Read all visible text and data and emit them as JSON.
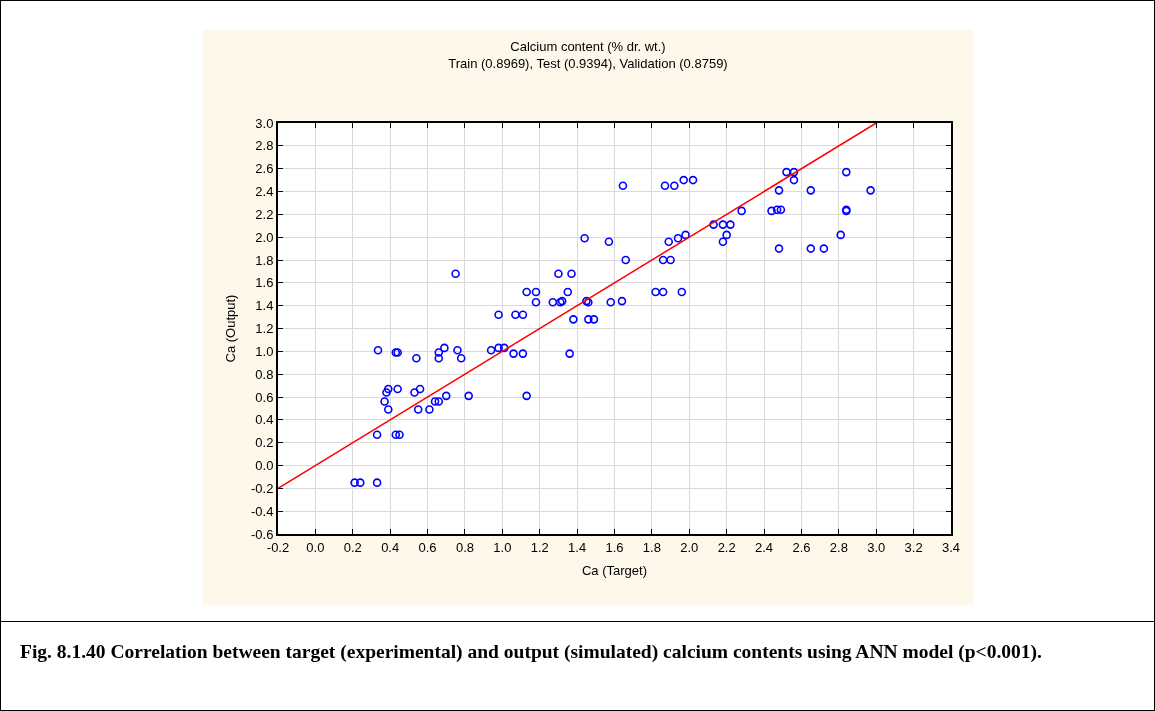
{
  "chart_data": {
    "type": "scatter",
    "title": "Calcium content (% dr. wt.)",
    "subtitle": "Train (0.8969), Test (0.9394), Validation (0.8759)",
    "xlabel": "Ca (Target)",
    "ylabel": "Ca (Output)",
    "annotations": [
      "Fig. 8.1.40 Correlation between target (experimental) and output (simulated) calcium contents using ANN model (p<0.001)."
    ],
    "xlim": [
      -0.2,
      3.4
    ],
    "xticks": [
      -0.2,
      {
        "value": 0,
        "label": "0.0"
      },
      0.2,
      0.4,
      0.6,
      0.8,
      {
        "value": 1,
        "label": "1.0"
      },
      1.2,
      1.4,
      1.6,
      1.8,
      {
        "value": 2,
        "label": "2.0"
      },
      2.2,
      2.4,
      2.6,
      2.8,
      {
        "value": 3,
        "label": "3.0"
      },
      3.2,
      3.4
    ],
    "ylim": [
      -0.6,
      3.0
    ],
    "yticks": [
      -0.6,
      -0.4,
      -0.2,
      {
        "value": 0,
        "label": "0.0"
      },
      0.2,
      0.4,
      0.6,
      0.8,
      {
        "value": 1,
        "label": "1.0"
      },
      1.2,
      1.4,
      1.6,
      1.8,
      {
        "value": 2,
        "label": "2.0"
      },
      2.2,
      2.4,
      2.6,
      2.8,
      {
        "value": 3,
        "label": "3.0"
      }
    ],
    "grid": true,
    "legend": false,
    "marker": "circle",
    "series": [
      {
        "color": "#0000ff",
        "x": [
          0.21,
          0.24,
          0.33,
          0.33,
          0.43,
          0.45,
          0.335,
          0.43,
          0.44,
          0.37,
          0.38,
          0.39,
          0.39,
          0.44,
          0.53,
          0.54,
          0.55,
          0.56,
          0.61,
          0.64,
          0.66,
          0.66,
          0.66,
          0.69,
          0.7,
          0.75,
          0.76,
          0.78,
          0.82,
          0.94,
          0.98,
          1.01,
          0.98,
          1.06,
          1.11,
          1.07,
          1.11,
          1.13,
          1.13,
          1.18,
          1.18,
          1.27,
          1.3,
          1.31,
          1.32,
          1.35,
          1.37,
          1.38,
          1.36,
          1.44,
          1.45,
          1.46,
          1.46,
          1.49,
          1.57,
          1.58,
          1.64,
          1.645,
          1.66,
          1.82,
          1.86,
          1.96,
          1.86,
          1.9,
          1.89,
          1.94,
          1.98,
          1.87,
          1.92,
          1.97,
          2.02,
          2.13,
          2.18,
          2.22,
          2.2,
          2.18,
          2.28,
          2.44,
          2.47,
          2.49,
          2.48,
          2.48,
          2.52,
          2.56,
          2.56,
          2.65,
          2.65,
          2.72,
          2.81,
          2.84,
          2.84,
          2.84,
          2.97
        ],
        "values": [
          -0.15,
          -0.15,
          -0.15,
          0.27,
          0.27,
          0.27,
          1.01,
          0.99,
          0.99,
          0.56,
          0.64,
          0.67,
          0.49,
          0.67,
          0.64,
          0.94,
          0.49,
          0.67,
          0.49,
          0.56,
          0.56,
          0.94,
          0.99,
          1.03,
          0.61,
          1.68,
          1.01,
          0.94,
          0.61,
          1.01,
          1.03,
          1.03,
          1.32,
          0.98,
          0.98,
          1.32,
          1.32,
          1.52,
          0.61,
          1.52,
          1.43,
          1.43,
          1.68,
          1.43,
          1.44,
          1.52,
          1.68,
          1.28,
          0.98,
          1.99,
          1.44,
          1.43,
          1.28,
          1.28,
          1.96,
          1.43,
          1.44,
          2.45,
          1.8,
          1.52,
          1.52,
          1.52,
          1.8,
          1.8,
          1.96,
          1.99,
          2.02,
          2.45,
          2.45,
          2.5,
          2.5,
          2.11,
          2.11,
          2.11,
          2.02,
          1.96,
          2.23,
          2.23,
          2.24,
          2.24,
          2.41,
          1.9,
          2.57,
          2.57,
          2.5,
          2.41,
          1.9,
          1.9,
          2.02,
          2.57,
          2.24,
          2.23,
          2.41
        ]
      },
      {
        "type": "line",
        "color": "#ff0000",
        "x": [
          -0.2,
          3.0
        ],
        "values": [
          -0.2,
          3.0
        ],
        "marker": "none",
        "line_style": "solid"
      }
    ]
  }
}
